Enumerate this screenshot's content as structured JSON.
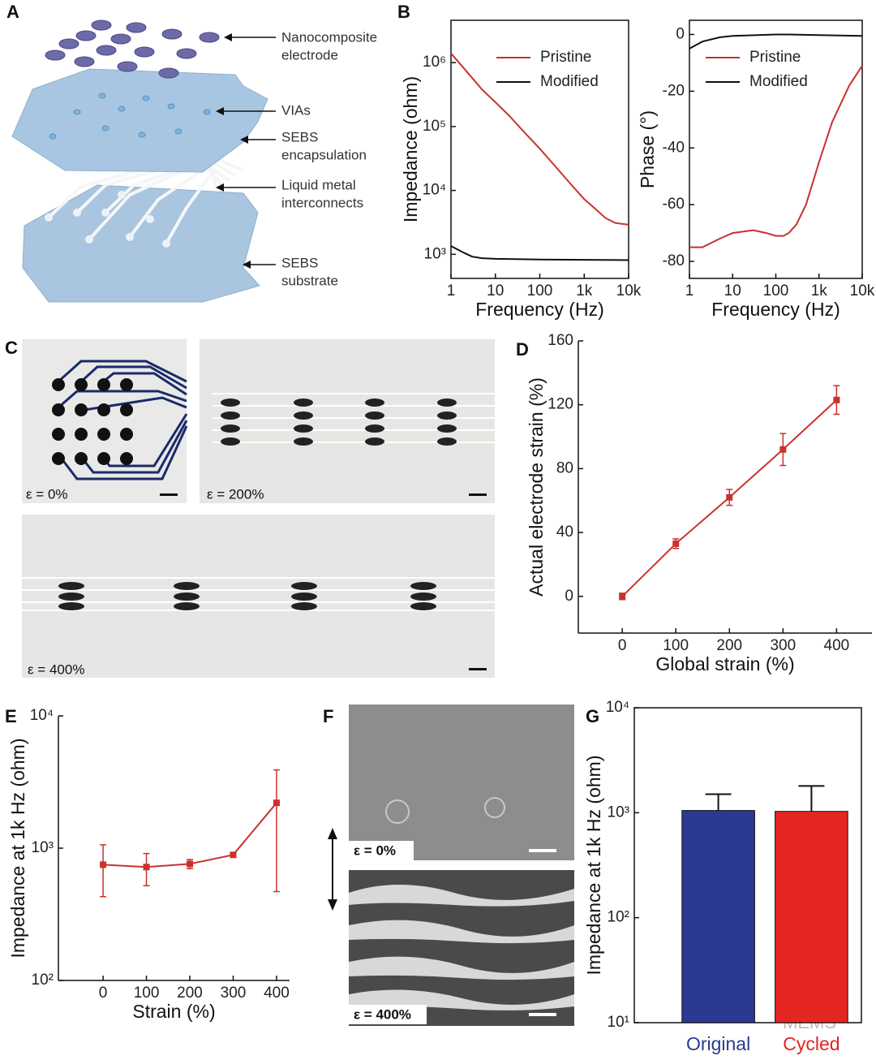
{
  "panel_letters": [
    "A",
    "B",
    "C",
    "D",
    "E",
    "F",
    "G"
  ],
  "panel_a": {
    "labels": [
      [
        "Nanocomposite",
        "electrode"
      ],
      [
        "VIAs"
      ],
      [
        "SEBS",
        "encapsulation"
      ],
      [
        "Liquid metal",
        "interconnects"
      ],
      [
        "SEBS",
        "substrate"
      ]
    ]
  },
  "panel_c": {
    "labels": [
      "ε = 0%",
      "ε = 200%",
      "ε = 400%"
    ]
  },
  "panel_f": {
    "labels": [
      "ε = 0%",
      "ε = 400%"
    ]
  },
  "watermark": "MEMS",
  "chart_data": [
    {
      "type": "line",
      "xlog": true,
      "ylog": true,
      "xlabel": "Frequency (Hz)",
      "ylabel": "Impedance (ohm)",
      "xlim": [
        1,
        10000
      ],
      "ylim": [
        420,
        4600000
      ],
      "xticks": [
        1,
        10,
        100,
        {
          "value": 1000,
          "label": "1k"
        },
        {
          "value": 10000,
          "label": "10k"
        }
      ],
      "yticks": [
        {
          "value": 1000,
          "label": "10³"
        },
        {
          "value": 10000,
          "label": "10⁴"
        },
        {
          "value": 100000,
          "label": "10⁵"
        },
        {
          "value": 1000000,
          "label": "10⁶"
        }
      ],
      "legend": "upper center",
      "series": [
        {
          "name": "Pristine",
          "color": "#c8322e",
          "x": [
            1,
            2,
            5,
            10,
            20,
            50,
            100,
            200,
            500,
            1000,
            2000,
            3000,
            5000,
            10000
          ],
          "values": [
            1400000,
            800000,
            380000,
            240000,
            150000,
            75000,
            45000,
            26000,
            12500,
            7300,
            4800,
            3700,
            3100,
            2900
          ]
        },
        {
          "name": "Modified",
          "color": "#111111",
          "x": [
            1,
            2,
            3,
            5,
            10,
            100,
            1000,
            10000
          ],
          "values": [
            1350,
            1050,
            920,
            870,
            850,
            830,
            820,
            810
          ]
        }
      ]
    },
    {
      "type": "line",
      "xlog": true,
      "xlabel": "Frequency (Hz)",
      "ylabel": "Phase (°)",
      "xlim": [
        1,
        10000
      ],
      "ylim": [
        -86,
        5
      ],
      "xticks": [
        1,
        10,
        100,
        {
          "value": 1000,
          "label": "1k"
        },
        {
          "value": 10000,
          "label": "10k"
        }
      ],
      "yticks": [
        0,
        -20,
        -40,
        -60,
        -80
      ],
      "legend": "upper center",
      "series": [
        {
          "name": "Pristine",
          "color": "#c8322e",
          "x": [
            1,
            2,
            5,
            10,
            30,
            60,
            100,
            150,
            200,
            300,
            500,
            1000,
            2000,
            5000,
            10000
          ],
          "values": [
            -75,
            -75,
            -72,
            -70,
            -69,
            -70,
            -71,
            -71,
            -70,
            -67,
            -60,
            -45,
            -31,
            -18,
            -11
          ]
        },
        {
          "name": "Modified",
          "color": "#111111",
          "x": [
            1,
            2,
            5,
            10,
            100,
            200,
            1000,
            10000
          ],
          "values": [
            -5,
            -2.5,
            -1,
            -0.5,
            0,
            0,
            -0.2,
            -0.5
          ]
        }
      ]
    },
    {
      "type": "line",
      "markers": true,
      "xlabel": "Global strain (%)",
      "ylabel": "Actual electrode strain (%)",
      "xlim": [
        -82,
        466
      ],
      "ylim": [
        -23,
        160
      ],
      "xticks": [
        0,
        100,
        200,
        300,
        400
      ],
      "yticks": [
        0,
        40,
        80,
        120,
        160
      ],
      "series": [
        {
          "color": "#c8322e",
          "x": [
            0,
            100,
            200,
            300,
            400
          ],
          "values": [
            0,
            33,
            62,
            92,
            123
          ],
          "errors": [
            2,
            3,
            5,
            10,
            9
          ]
        }
      ]
    },
    {
      "type": "line",
      "markers": true,
      "ylog": true,
      "xlabel": "Strain (%)",
      "ylabel": "Impedance at 1k Hz (ohm)",
      "xlim": [
        -103,
        430
      ],
      "ylim": [
        100,
        10000
      ],
      "xticks": [
        0,
        100,
        200,
        300,
        400
      ],
      "yticks": [
        {
          "value": 100,
          "label": "10²"
        },
        {
          "value": 1000,
          "label": "10³"
        },
        {
          "value": 10000,
          "label": "10⁴"
        }
      ],
      "series": [
        {
          "color": "#c8322e",
          "x": [
            0,
            100,
            200,
            300,
            400
          ],
          "values": [
            750,
            720,
            760,
            890,
            2200
          ],
          "errors_low": [
            320,
            200,
            60,
            30,
            1730
          ],
          "errors_high": [
            310,
            190,
            60,
            30,
            1700
          ]
        }
      ]
    },
    {
      "type": "bar",
      "ylog": true,
      "ylabel": "Impedance at 1k Hz (ohm)",
      "ylim": [
        10,
        10000
      ],
      "yticks": [
        {
          "value": 10,
          "label": "10¹"
        },
        {
          "value": 100,
          "label": "10²"
        },
        {
          "value": 1000,
          "label": "10³"
        },
        {
          "value": 10000,
          "label": "10⁴"
        }
      ],
      "categories": [
        "Original",
        "Cycled"
      ],
      "colors": [
        "#2b3990",
        "#e52521"
      ],
      "values": [
        1050,
        1030
      ],
      "errors": [
        450,
        770
      ]
    }
  ]
}
